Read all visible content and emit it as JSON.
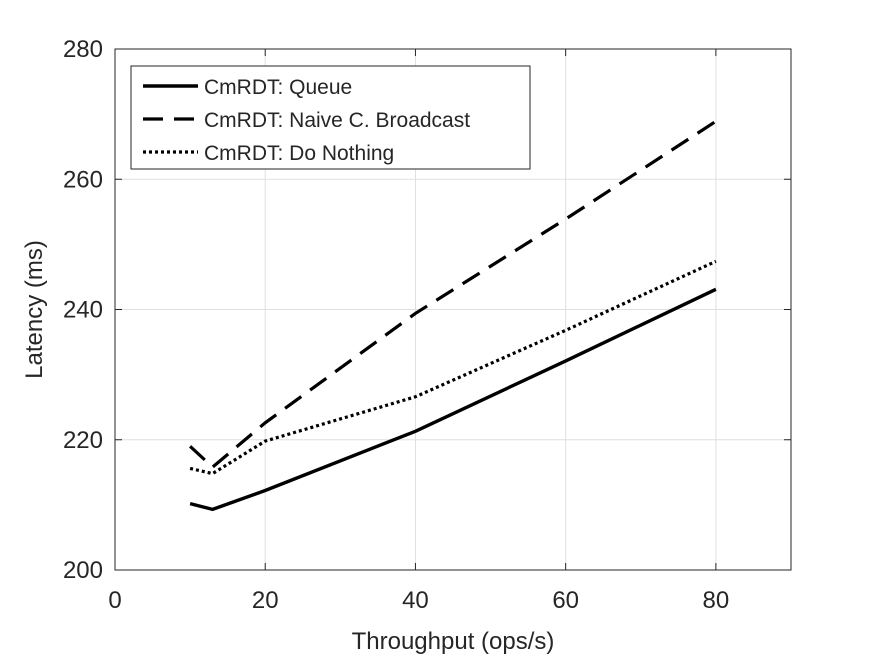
{
  "chart_data": {
    "type": "line",
    "title": "",
    "xlabel": "Throughput (ops/s)",
    "ylabel": "Latency (ms)",
    "xlim": [
      0,
      90
    ],
    "ylim": [
      200,
      280
    ],
    "xticks": [
      0,
      20,
      40,
      60,
      80
    ],
    "yticks": [
      200,
      220,
      240,
      260,
      280
    ],
    "grid": true,
    "legend_position": "top-left",
    "series": [
      {
        "name": "CmRDT: Queue",
        "line_style": "solid",
        "color": "#000000",
        "x": [
          10,
          13,
          20,
          40,
          60,
          80
        ],
        "y": [
          210.2,
          209.3,
          212.2,
          221.3,
          232.1,
          243.1
        ]
      },
      {
        "name": "CmRDT: Naive C. Broadcast",
        "line_style": "dashed",
        "color": "#000000",
        "x": [
          10,
          13,
          20,
          40,
          60,
          80
        ],
        "y": [
          219,
          215.8,
          222.6,
          239.4,
          253.9,
          268.9
        ]
      },
      {
        "name": "CmRDT: Do Nothing",
        "line_style": "dotted",
        "color": "#000000",
        "x": [
          10,
          13,
          20,
          40,
          60,
          80
        ],
        "y": [
          215.6,
          214.8,
          219.8,
          226.6,
          236.8,
          247.4
        ]
      }
    ]
  }
}
